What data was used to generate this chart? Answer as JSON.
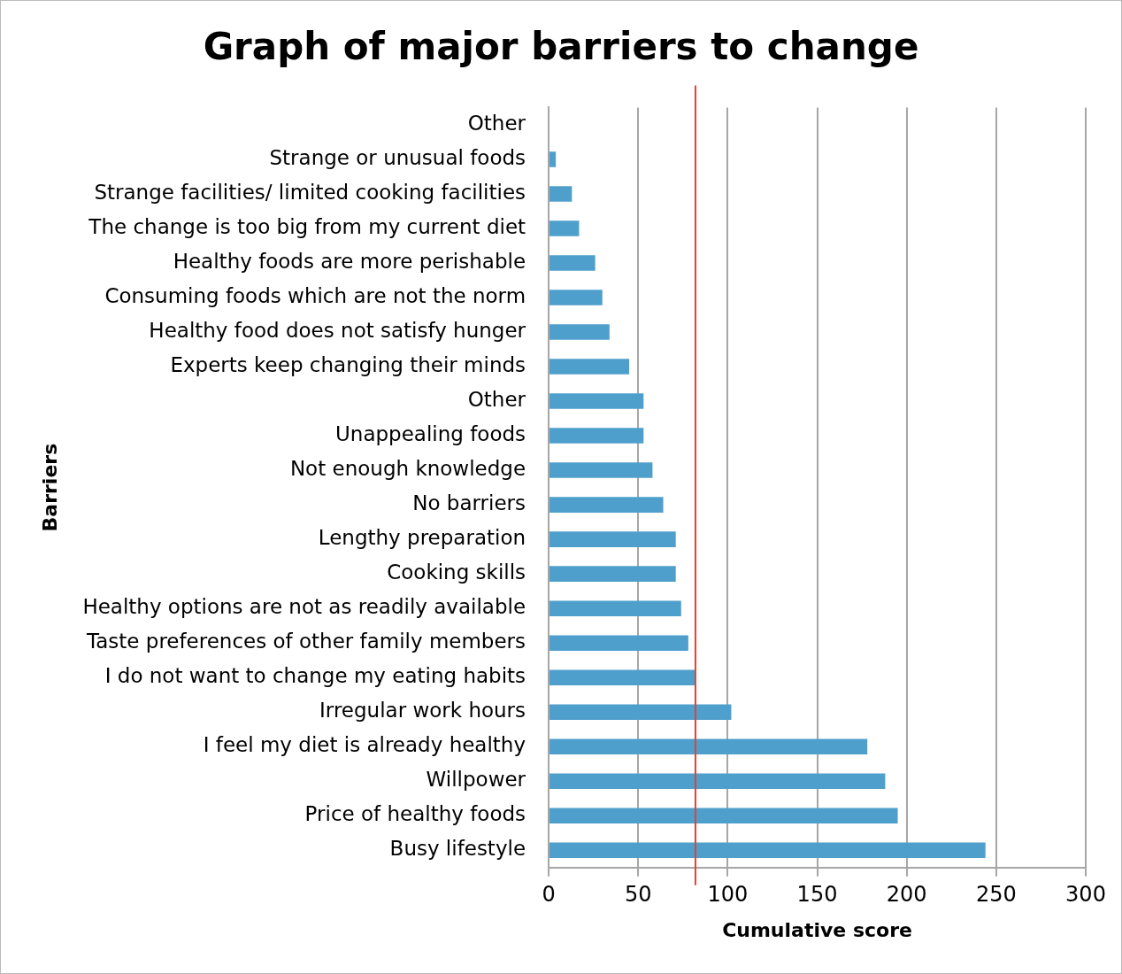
{
  "chart_data": {
    "type": "bar",
    "orientation": "horizontal",
    "title": "Graph of major barriers to change",
    "xlabel": "Cumulative score",
    "ylabel": "Barriers",
    "categories": [
      "Other",
      "Strange or unusual foods",
      "Strange facilities/ limited cooking facilities",
      "The change is too big from my current diet",
      "Healthy foods are more perishable",
      "Consuming foods which are not the norm",
      "Healthy food does not satisfy hunger",
      "Experts keep changing their minds",
      "Other",
      "Unappealing foods",
      "Not enough knowledge",
      "No barriers",
      "Lengthy preparation",
      "Cooking skills",
      "Healthy options are not as readily available",
      "Taste preferences of other family members",
      "I do not want to change my eating habits",
      "Irregular work hours",
      "I feel my diet is already healthy",
      "Willpower",
      "Price of healthy foods",
      "Busy lifestyle"
    ],
    "values": [
      0,
      4,
      13,
      17,
      26,
      30,
      34,
      45,
      53,
      53,
      58,
      64,
      71,
      71,
      74,
      78,
      82,
      102,
      178,
      188,
      195,
      244
    ],
    "color": "#4f9fcc",
    "xlim": [
      0,
      300
    ],
    "xticks": [
      0,
      50,
      100,
      150,
      200,
      250,
      300
    ],
    "grid": "x",
    "legend": false,
    "ref_lines": [
      {
        "axis": "x",
        "value": 82,
        "color": "#e8402e"
      }
    ]
  }
}
